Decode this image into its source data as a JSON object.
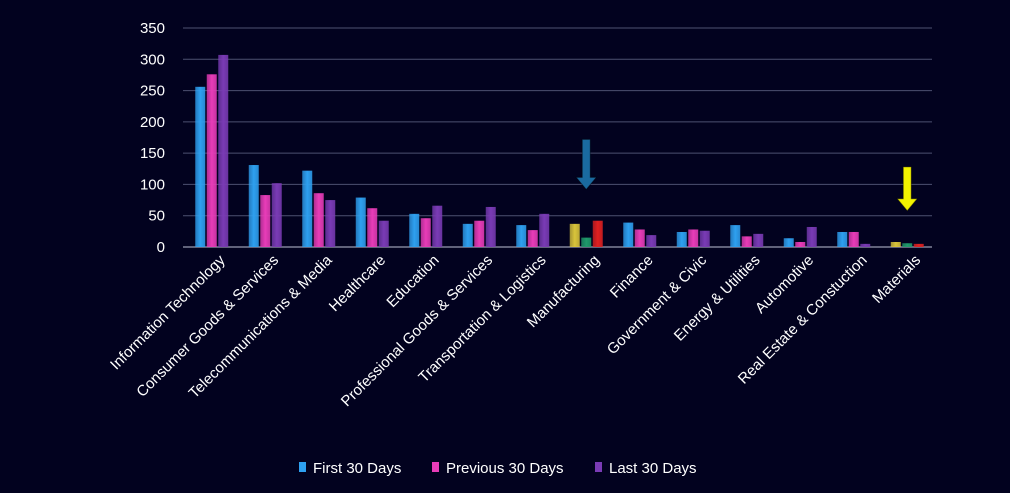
{
  "chart_data": {
    "type": "bar",
    "categories": [
      "Information Technology",
      "Consumer Goods &  Services",
      "Telecommunications & Media",
      "Healthcare",
      "Education",
      "Professional Goods & Services",
      "Transportation & Logistics",
      "Manufacturing",
      "Finance",
      "Government & Civic",
      "Energy & Utilities",
      "Automotive",
      "Real Estate & Constuction",
      "Materials"
    ],
    "series": [
      {
        "name": "First 30 Days",
        "color": "#2ea0f0",
        "values": [
          256,
          131,
          122,
          79,
          53,
          37,
          35,
          37,
          39,
          24,
          35,
          14,
          24,
          8
        ]
      },
      {
        "name": "Previous 30 Days",
        "color": "#e83cb8",
        "values": [
          276,
          83,
          86,
          62,
          46,
          42,
          27,
          15,
          28,
          28,
          17,
          8,
          24,
          6
        ]
      },
      {
        "name": "Last 30 Days",
        "color": "#7a3bb5",
        "values": [
          307,
          102,
          75,
          42,
          66,
          64,
          53,
          42,
          19,
          26,
          21,
          32,
          5,
          5
        ]
      }
    ],
    "highlight_colors": {
      "Manufacturing": [
        "#d9c43a",
        "#1f9a6a",
        "#e02020"
      ],
      "Materials": [
        "#d9c43a",
        "#1f9a6a",
        "#e02020"
      ]
    },
    "annotations": [
      {
        "type": "arrow",
        "category": "Manufacturing",
        "color": "#1a6aa0",
        "from_value": 172,
        "to_value": 92
      },
      {
        "type": "arrow",
        "category": "Materials",
        "color": "#f2f200",
        "from_value": 128,
        "to_value": 58
      }
    ],
    "ylim": [
      0,
      350
    ],
    "yticks": [
      0,
      50,
      100,
      150,
      200,
      250,
      300,
      350
    ],
    "grid": true,
    "legend_position": "bottom"
  }
}
